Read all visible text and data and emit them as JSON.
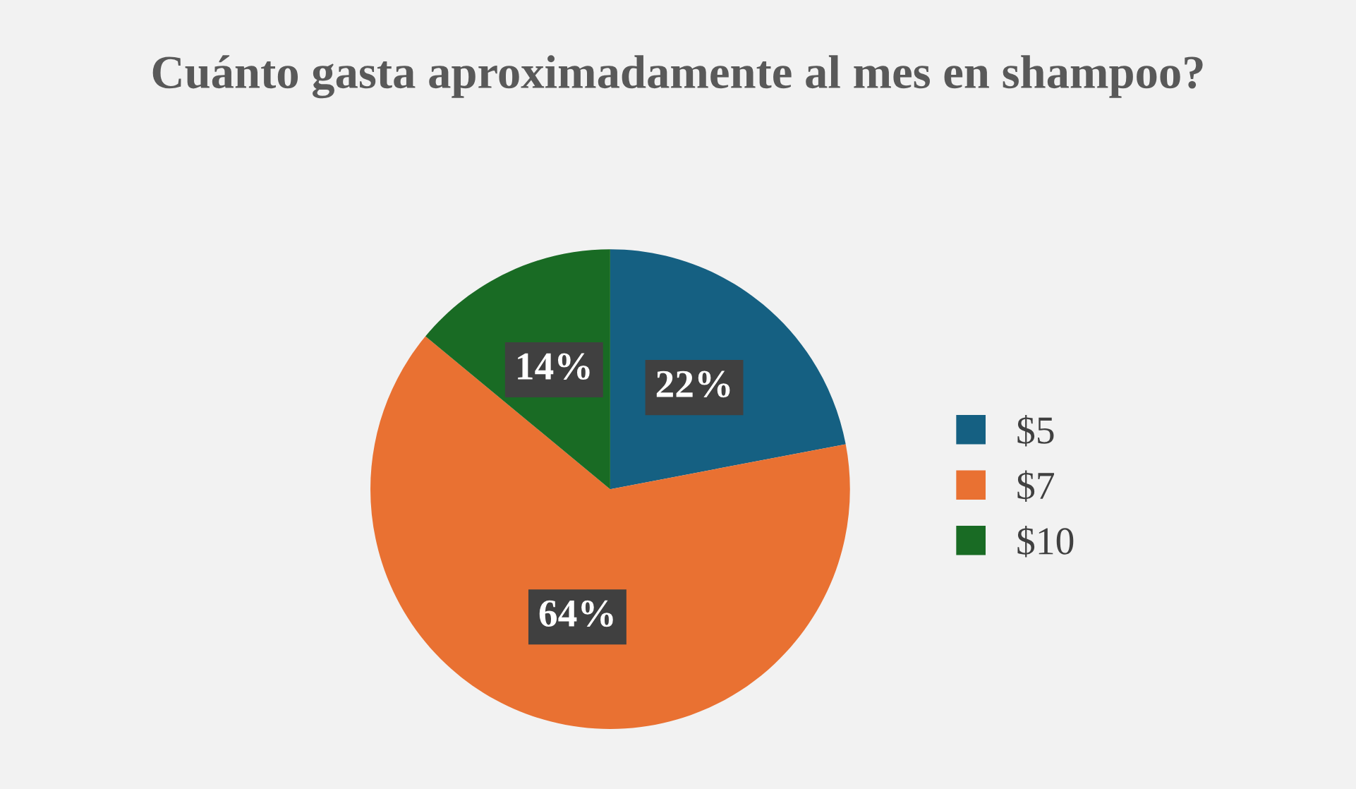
{
  "chart_data": {
    "type": "pie",
    "title": "Cuánto gasta aproximadamente al mes en shampoo?",
    "categories": [
      "$5",
      "$7",
      "$10"
    ],
    "values": [
      22,
      64,
      14
    ],
    "colors": [
      "#156082",
      "#e97132",
      "#196b24"
    ],
    "value_labels": [
      "22%",
      "64%",
      "14%"
    ],
    "legend": "right"
  }
}
